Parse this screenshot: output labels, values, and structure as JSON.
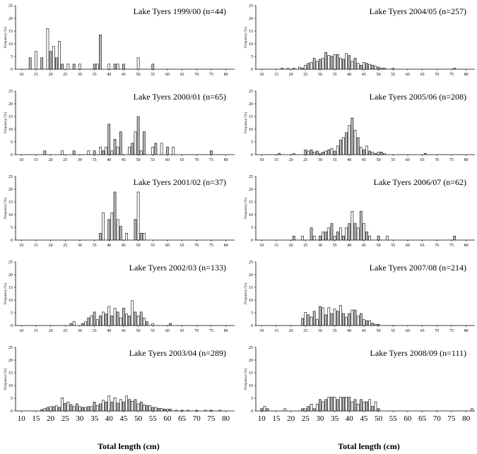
{
  "chart_data": [
    {
      "type": "bar",
      "title": "Lake Tyers 1999/00 (n=44)",
      "ylabel": "Frequency (%)",
      "xlim": [
        8,
        83
      ],
      "ylim": [
        0,
        25
      ],
      "xticks": [
        10,
        15,
        20,
        25,
        30,
        35,
        40,
        45,
        50,
        55,
        60,
        65,
        70,
        75,
        80
      ],
      "yticks": [
        0,
        5,
        10,
        15,
        20,
        25
      ],
      "x": [
        13,
        15,
        17,
        19,
        20,
        21,
        22,
        23,
        24,
        26,
        28,
        30,
        35,
        36,
        37,
        40,
        42,
        43,
        45,
        50,
        55
      ],
      "values": [
        4.5,
        7,
        4.5,
        16,
        7,
        9,
        4.5,
        11,
        2,
        2,
        2,
        2,
        2,
        2,
        13.5,
        2,
        2,
        2,
        2,
        4.5,
        2
      ]
    },
    {
      "type": "bar",
      "title": "Lake Tyers 2000/01 (n=65)",
      "ylabel": "Frequency (%)",
      "xlim": [
        8,
        83
      ],
      "ylim": [
        0,
        25
      ],
      "xticks": [
        10,
        15,
        20,
        25,
        30,
        35,
        40,
        45,
        50,
        55,
        60,
        65,
        70,
        75,
        80
      ],
      "yticks": [
        0,
        5,
        10,
        15,
        20,
        25
      ],
      "x": [
        18,
        24,
        28,
        33,
        35,
        37,
        38,
        39,
        40,
        41,
        42,
        43,
        44,
        47,
        48,
        49,
        50,
        51,
        52,
        55,
        56,
        58,
        60,
        62,
        75
      ],
      "values": [
        1.5,
        1.5,
        1.5,
        1.5,
        1.5,
        3,
        1.5,
        3,
        12,
        1.5,
        6,
        3,
        9,
        3,
        4.5,
        9,
        15,
        1.5,
        9,
        3,
        4.5,
        4.5,
        3,
        3,
        1.5
      ]
    },
    {
      "type": "bar",
      "title": "Lake Tyers 2001/02 (n=37)",
      "ylabel": "Frequency (%)",
      "xlim": [
        8,
        83
      ],
      "ylim": [
        0,
        25
      ],
      "xticks": [
        10,
        15,
        20,
        25,
        30,
        35,
        40,
        45,
        50,
        55,
        60,
        65,
        70,
        75,
        80
      ],
      "yticks": [
        0,
        5,
        10,
        15,
        20,
        25
      ],
      "x": [
        37,
        38,
        40,
        41,
        42,
        43,
        44,
        46,
        49,
        50,
        51,
        52
      ],
      "values": [
        2.7,
        10.8,
        8.1,
        10.8,
        18.9,
        8.1,
        5.4,
        2.7,
        8.1,
        18.9,
        2.7,
        2.7
      ]
    },
    {
      "type": "bar",
      "title": "Lake Tyers 2002/03 (n=133)",
      "ylabel": "Frequency (%)",
      "xlim": [
        8,
        83
      ],
      "ylim": [
        0,
        25
      ],
      "xticks": [
        10,
        15,
        20,
        25,
        30,
        35,
        40,
        45,
        50,
        55,
        60,
        65,
        70,
        75,
        80
      ],
      "yticks": [
        0,
        5,
        10,
        15,
        20,
        25
      ],
      "x": [
        27,
        28,
        31,
        32,
        33,
        34,
        35,
        36,
        37,
        38,
        39,
        40,
        41,
        42,
        43,
        44,
        45,
        46,
        47,
        48,
        49,
        50,
        51,
        52,
        53,
        55,
        61
      ],
      "values": [
        0.8,
        1.5,
        0.8,
        1.5,
        3,
        3.8,
        5.3,
        2.3,
        3.8,
        5.3,
        4.5,
        7.5,
        3.8,
        6.8,
        5.3,
        3,
        6.8,
        4.5,
        3.8,
        9.8,
        5.3,
        3.8,
        5.3,
        3,
        1.5,
        0.8,
        0.8
      ]
    },
    {
      "type": "bar",
      "title": "Lake Tyers 2003/04 (n=289)",
      "ylabel": "Frequency (%)",
      "xlabel": "Total length (cm)",
      "xlim": [
        8,
        83
      ],
      "ylim": [
        0,
        25
      ],
      "xticks": [
        10,
        15,
        20,
        25,
        30,
        35,
        40,
        45,
        50,
        55,
        60,
        65,
        70,
        75,
        80
      ],
      "yticks": [
        0,
        5,
        10,
        15,
        20,
        25
      ],
      "x": [
        17,
        18,
        19,
        20,
        21,
        22,
        23,
        24,
        25,
        26,
        27,
        28,
        29,
        30,
        31,
        32,
        33,
        34,
        35,
        36,
        37,
        38,
        39,
        40,
        41,
        42,
        43,
        44,
        45,
        46,
        47,
        48,
        49,
        50,
        51,
        52,
        53,
        54,
        55,
        56,
        57,
        58,
        59,
        60,
        61,
        63,
        65,
        67,
        70,
        73,
        75,
        78
      ],
      "values": [
        0.5,
        1,
        1.4,
        1.7,
        1.7,
        2,
        1.4,
        5.2,
        3,
        3.5,
        2.5,
        1.7,
        2.8,
        1.7,
        1.4,
        1.4,
        1.7,
        1.7,
        3.5,
        2.1,
        2.8,
        4.2,
        3.5,
        5.9,
        3.5,
        5.2,
        3.1,
        4.5,
        3.5,
        5.9,
        4.5,
        3.8,
        4.5,
        2.8,
        3.5,
        2.4,
        2.1,
        2.1,
        1.4,
        1.4,
        1,
        1,
        0.7,
        0.7,
        0.7,
        0.3,
        0.3,
        0.3,
        0.3,
        0.3,
        0.3,
        0.3
      ]
    },
    {
      "type": "bar",
      "title": "Lake Tyers 2004/05 (n=257)",
      "ylabel": "Frequency (%)",
      "xlim": [
        8,
        83
      ],
      "ylim": [
        0,
        25
      ],
      "xticks": [
        10,
        15,
        20,
        25,
        30,
        35,
        40,
        45,
        50,
        55,
        60,
        65,
        70,
        75,
        80
      ],
      "yticks": [
        0,
        5,
        10,
        15,
        20,
        25
      ],
      "x": [
        17,
        19,
        21,
        23,
        24,
        25,
        26,
        27,
        28,
        29,
        30,
        31,
        32,
        33,
        34,
        35,
        36,
        37,
        38,
        39,
        40,
        41,
        42,
        43,
        44,
        45,
        46,
        47,
        48,
        49,
        50,
        51,
        52,
        55,
        76
      ],
      "values": [
        0.4,
        0.4,
        0.4,
        0.8,
        0.4,
        1.6,
        2.3,
        2.7,
        4.3,
        3.1,
        3.9,
        4.3,
        6.6,
        5.4,
        5.1,
        5.8,
        5.8,
        4.3,
        3.9,
        6.2,
        5.4,
        3.1,
        4.3,
        2.3,
        1.6,
        2.7,
        2.3,
        1.9,
        1.6,
        1.2,
        0.8,
        0.4,
        0.4,
        0.4,
        0.4
      ]
    },
    {
      "type": "bar",
      "title": "Lake Tyers 2005/06 (n=208)",
      "ylabel": "Frequency (%)",
      "xlim": [
        8,
        83
      ],
      "ylim": [
        0,
        25
      ],
      "xticks": [
        10,
        15,
        20,
        25,
        30,
        35,
        40,
        45,
        50,
        55,
        60,
        65,
        70,
        75,
        80
      ],
      "yticks": [
        0,
        5,
        10,
        15,
        20,
        25
      ],
      "x": [
        16,
        21,
        25,
        26,
        27,
        28,
        29,
        30,
        31,
        32,
        33,
        34,
        35,
        36,
        37,
        38,
        39,
        40,
        41,
        42,
        43,
        44,
        45,
        46,
        47,
        48,
        49,
        50,
        51,
        52,
        66
      ],
      "values": [
        0.5,
        0.5,
        1.9,
        1.4,
        1.9,
        1,
        1.4,
        0.5,
        1,
        1.4,
        1.9,
        2.4,
        1.4,
        3.4,
        5.8,
        6.7,
        8.7,
        11.5,
        14.4,
        9.6,
        6.7,
        2.9,
        1.9,
        3.4,
        1.4,
        1,
        0.5,
        1,
        1,
        0.5,
        0.5
      ]
    },
    {
      "type": "bar",
      "title": "Lake Tyers 2006/07 (n=62)",
      "ylabel": "Frequency (%)",
      "xlim": [
        8,
        83
      ],
      "ylim": [
        0,
        25
      ],
      "xticks": [
        10,
        15,
        20,
        25,
        30,
        35,
        40,
        45,
        50,
        55,
        60,
        65,
        70,
        75,
        80
      ],
      "yticks": [
        0,
        5,
        10,
        15,
        20,
        25
      ],
      "x": [
        21,
        24,
        27,
        28,
        30,
        31,
        32,
        33,
        34,
        35,
        36,
        37,
        38,
        39,
        40,
        41,
        42,
        43,
        44,
        45,
        46,
        47,
        50,
        53,
        76
      ],
      "values": [
        1.6,
        1.6,
        4.8,
        1.6,
        1.6,
        3.2,
        3.2,
        4.8,
        6.5,
        1.6,
        3.2,
        4.8,
        1.6,
        4.8,
        6.5,
        11.3,
        6.5,
        4.8,
        11.3,
        6.5,
        3.2,
        1.6,
        1.6,
        1.6,
        1.6
      ]
    },
    {
      "type": "bar",
      "title": "Lake Tyers 2007/08 (n=214)",
      "ylabel": "Frequency (%)",
      "xlim": [
        8,
        83
      ],
      "ylim": [
        0,
        25
      ],
      "xticks": [
        10,
        15,
        20,
        25,
        30,
        35,
        40,
        45,
        50,
        55,
        60,
        65,
        70,
        75,
        80
      ],
      "yticks": [
        0,
        5,
        10,
        15,
        20,
        25
      ],
      "x": [
        24,
        25,
        26,
        27,
        28,
        29,
        30,
        31,
        32,
        33,
        34,
        35,
        36,
        37,
        38,
        39,
        40,
        41,
        42,
        43,
        44,
        45,
        46,
        47,
        48,
        49,
        50
      ],
      "values": [
        2.8,
        5.1,
        4.2,
        3.3,
        5.6,
        2.3,
        7.5,
        7,
        4.2,
        7,
        4.7,
        6.5,
        5.6,
        7.9,
        4.7,
        3.3,
        4.7,
        6.1,
        6.1,
        3.7,
        4.7,
        2.3,
        1.9,
        1.9,
        0.9,
        0.5,
        0.5
      ]
    },
    {
      "type": "bar",
      "title": "Lake Tyers 2008/09 (n=111)",
      "ylabel": "Frequency (%)",
      "xlabel": "Total length (cm)",
      "xlim": [
        8,
        83
      ],
      "ylim": [
        0,
        25
      ],
      "xticks": [
        10,
        15,
        20,
        25,
        30,
        35,
        40,
        45,
        50,
        55,
        60,
        65,
        70,
        75,
        80
      ],
      "yticks": [
        0,
        5,
        10,
        15,
        20,
        25
      ],
      "x": [
        10,
        11,
        12,
        18,
        24,
        25,
        26,
        27,
        28,
        29,
        30,
        31,
        32,
        33,
        34,
        35,
        36,
        37,
        38,
        39,
        40,
        41,
        42,
        43,
        44,
        45,
        46,
        47,
        48,
        49,
        50,
        82
      ],
      "values": [
        0.9,
        1.8,
        0.9,
        0.9,
        0.9,
        0.9,
        1.8,
        2.7,
        0.9,
        2.7,
        4.5,
        3.6,
        4.5,
        5.4,
        5.4,
        5.4,
        4.5,
        5.4,
        5.4,
        5.4,
        5.4,
        3.6,
        4.5,
        2.7,
        4.5,
        3.6,
        3.6,
        4.5,
        1.8,
        3.6,
        0.9,
        0.9
      ]
    }
  ]
}
